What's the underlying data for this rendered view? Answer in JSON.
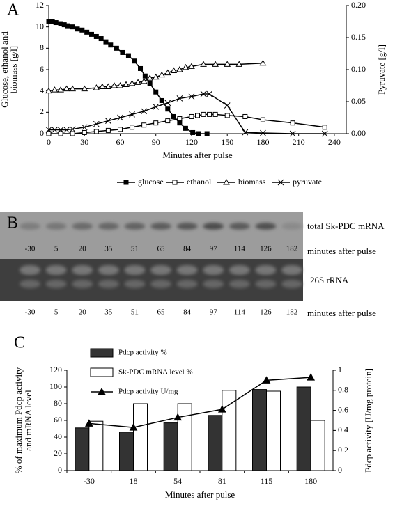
{
  "chart_data": [
    {
      "type": "line",
      "panel_label": "A",
      "x_label": "Minutes after pulse",
      "y_label": [
        "Glucose, ethanol and",
        "biomass [g/l]"
      ],
      "y2_label": "Pyruvate [g/l]",
      "xlim": [
        0,
        250
      ],
      "xticks": [
        0,
        30,
        60,
        90,
        120,
        150,
        180,
        210,
        240
      ],
      "ylim": [
        0,
        12
      ],
      "yticks": [
        0,
        2,
        4,
        6,
        8,
        10,
        12
      ],
      "y2lim": [
        0,
        0.2
      ],
      "y2ticks": [
        {
          "value": 0,
          "label": "0.00"
        },
        0.05,
        {
          "value": 0.1,
          "label": "0.10"
        },
        0.15,
        {
          "value": 0.2,
          "label": "0.20"
        }
      ],
      "series": [
        {
          "name": "glucose",
          "marker": "filled-square",
          "color": "#000000",
          "x": [
            0,
            3,
            6,
            10,
            13,
            16,
            20,
            24,
            28,
            32,
            36,
            40,
            44,
            48,
            52,
            57,
            62,
            67,
            72,
            77,
            81,
            85,
            90,
            95,
            100,
            105,
            110,
            115,
            121,
            126,
            133
          ],
          "values": [
            10.5,
            10.5,
            10.4,
            10.3,
            10.2,
            10.1,
            10,
            9.8,
            9.7,
            9.5,
            9.3,
            9.1,
            8.9,
            8.6,
            8.3,
            8,
            7.6,
            7.3,
            6.8,
            6.1,
            5.4,
            4.7,
            3.9,
            3.1,
            2.3,
            1.6,
            1,
            0.5,
            0.1,
            0,
            0
          ]
        },
        {
          "name": "ethanol",
          "marker": "open-square",
          "color": "#000000",
          "x": [
            0,
            10,
            20,
            30,
            40,
            50,
            60,
            70,
            80,
            90,
            100,
            110,
            120,
            125,
            130,
            135,
            140,
            150,
            165,
            180,
            205,
            232
          ],
          "values": [
            0,
            0,
            0,
            0.1,
            0.2,
            0.3,
            0.4,
            0.6,
            0.8,
            1,
            1.2,
            1.4,
            1.6,
            1.7,
            1.8,
            1.8,
            1.8,
            1.7,
            1.6,
            1.3,
            1,
            0.6
          ]
        },
        {
          "name": "biomass",
          "marker": "triangle",
          "color": "#000000",
          "x": [
            0,
            5,
            10,
            15,
            20,
            30,
            40,
            45,
            50,
            55,
            60,
            65,
            70,
            75,
            80,
            85,
            90,
            95,
            100,
            105,
            110,
            115,
            120,
            130,
            140,
            150,
            160,
            180
          ],
          "values": [
            4,
            4.1,
            4.1,
            4.2,
            4.2,
            4.2,
            4.3,
            4.4,
            4.4,
            4.5,
            4.5,
            4.6,
            4.7,
            4.8,
            4.9,
            5.2,
            5.3,
            5.5,
            5.7,
            5.9,
            6,
            6.2,
            6.3,
            6.5,
            6.5,
            6.5,
            6.5,
            6.6
          ]
        },
        {
          "name": "pyruvate",
          "marker": "cross",
          "color": "#000000",
          "axis": "y2",
          "x": [
            0,
            5,
            10,
            15,
            20,
            30,
            40,
            50,
            60,
            70,
            80,
            90,
            100,
            110,
            120,
            130,
            135,
            150,
            165,
            180,
            205,
            232
          ],
          "values": [
            0.006,
            0.006,
            0.006,
            0.006,
            0.007,
            0.01,
            0.015,
            0.02,
            0.025,
            0.03,
            0.035,
            0.042,
            0.048,
            0.055,
            0.058,
            0.062,
            0.062,
            0.044,
            0.002,
            0.001,
            0,
            0
          ]
        }
      ]
    },
    {
      "type": "combo",
      "panel_label": "C",
      "x_label": "Minutes after pulse",
      "y_label": [
        "% of maximum Pdcp activity",
        "and mRNA level"
      ],
      "y2_label": "Pdcp activity [U/mg protein]",
      "categories": [
        "-30",
        "18",
        "54",
        "81",
        "115",
        "180"
      ],
      "ylim": [
        0,
        120
      ],
      "yticks": [
        0,
        20,
        40,
        60,
        80,
        100,
        120
      ],
      "y2lim": [
        0,
        1
      ],
      "y2ticks": [
        0,
        0.2,
        0.4,
        0.6,
        0.8,
        1
      ],
      "series": [
        {
          "name": "Pdcp activity %",
          "kind": "bar",
          "color": "#333333",
          "values": [
            51,
            46,
            57,
            66,
            97,
            100
          ]
        },
        {
          "name": "Sk-PDC mRNA level %",
          "kind": "bar",
          "color": "#ffffff",
          "values": [
            59,
            80,
            80,
            96,
            95,
            60
          ]
        },
        {
          "name": "Pdcp activity U/mg",
          "kind": "line",
          "marker": "filled-triangle",
          "color": "#000000",
          "axis": "y2",
          "values": [
            0.47,
            0.43,
            0.53,
            0.61,
            0.9,
            0.93
          ]
        }
      ]
    }
  ],
  "gel": {
    "panel_label": "B",
    "top_label": "total Sk-PDC mRNA",
    "top_caption": "minutes after pulse",
    "top_lanes": [
      "-30",
      "5",
      "20",
      "35",
      "51",
      "65",
      "84",
      "97",
      "114",
      "126",
      "182"
    ],
    "bottom_label": "26S rRNA",
    "bottom_caption": "minutes after pulse",
    "bottom_lanes": [
      "-30",
      "5",
      "20",
      "35",
      "51",
      "65",
      "84",
      "97",
      "114",
      "126",
      "182"
    ]
  }
}
